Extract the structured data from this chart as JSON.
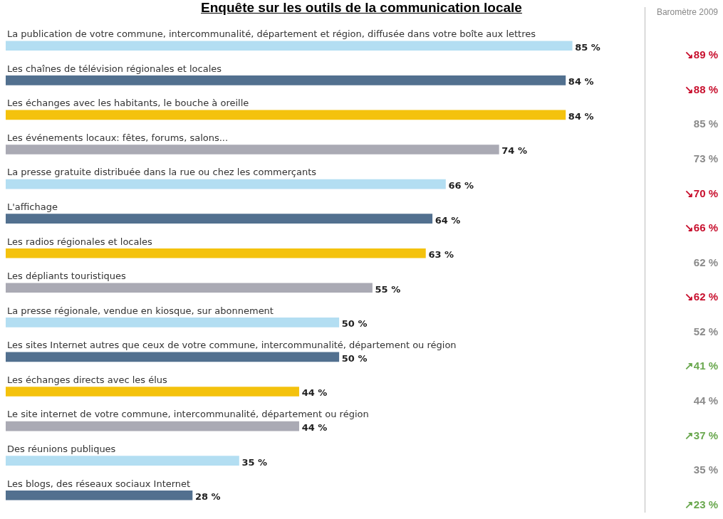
{
  "chart_data": [
    {
      "type": "bar",
      "orientation": "horizontal",
      "title": "Enquête sur les outils de la communication locale",
      "categories": [
        "La publication de votre commune, intercommunalité, département et région, diffusée dans votre boîte aux lettres",
        "Les chaînes de télévision régionales et locales",
        "Les échanges avec les habitants, le bouche à oreille",
        "Les événements locaux: fêtes, forums, salons...",
        "La presse gratuite distribuée dans la rue ou chez les commerçants",
        "L'affichage",
        "Les radios régionales et locales",
        "Les dépliants touristiques",
        "La presse régionale, vendue en kiosque, sur abonnement",
        "Les sites Internet autres que ceux de votre commune, intercommunalité, département ou région",
        "Les échanges directs avec les élus",
        "Le site internet de votre commune, intercommunalité, département ou région",
        "Des réunions publiques",
        "Les blogs, des réseaux sociaux Internet"
      ],
      "values": [
        85,
        84,
        84,
        74,
        66,
        64,
        63,
        55,
        50,
        50,
        44,
        44,
        35,
        28
      ],
      "colors": [
        "#b3def2",
        "#52708f",
        "#f4c20d",
        "#aaaab4",
        "#b3def2",
        "#52708f",
        "#f4c20d",
        "#aaaab4",
        "#b3def2",
        "#52708f",
        "#f4c20d",
        "#aaaab4",
        "#b3def2",
        "#52708f"
      ],
      "value_labels": [
        "85 %",
        "84 %",
        "84 %",
        "74 %",
        "66 %",
        "64 %",
        "63 %",
        "55 %",
        "50 %",
        "50 %",
        "44 %",
        "44 %",
        "35 %",
        "28 %"
      ],
      "tick_labels": false
    },
    {
      "type": "other",
      "title": "Baromètre 2009",
      "annotations": [
        "↘89 %",
        "↘88 %",
        "85 %",
        "73 %",
        "↘70 %",
        "↘66 %",
        "62 %",
        "↘62 %",
        "52 %",
        "↗41 %",
        "44 %",
        "↗37 %",
        "35 %",
        "↗23 %"
      ],
      "colors": [
        "#c8102e",
        "#c8102e",
        "#8a8a8a",
        "#8a8a8a",
        "#c8102e",
        "#c8102e",
        "#8a8a8a",
        "#c8102e",
        "#8a8a8a",
        "#6aa84f",
        "#8a8a8a",
        "#6aa84f",
        "#8a8a8a",
        "#6aa84f"
      ]
    }
  ]
}
